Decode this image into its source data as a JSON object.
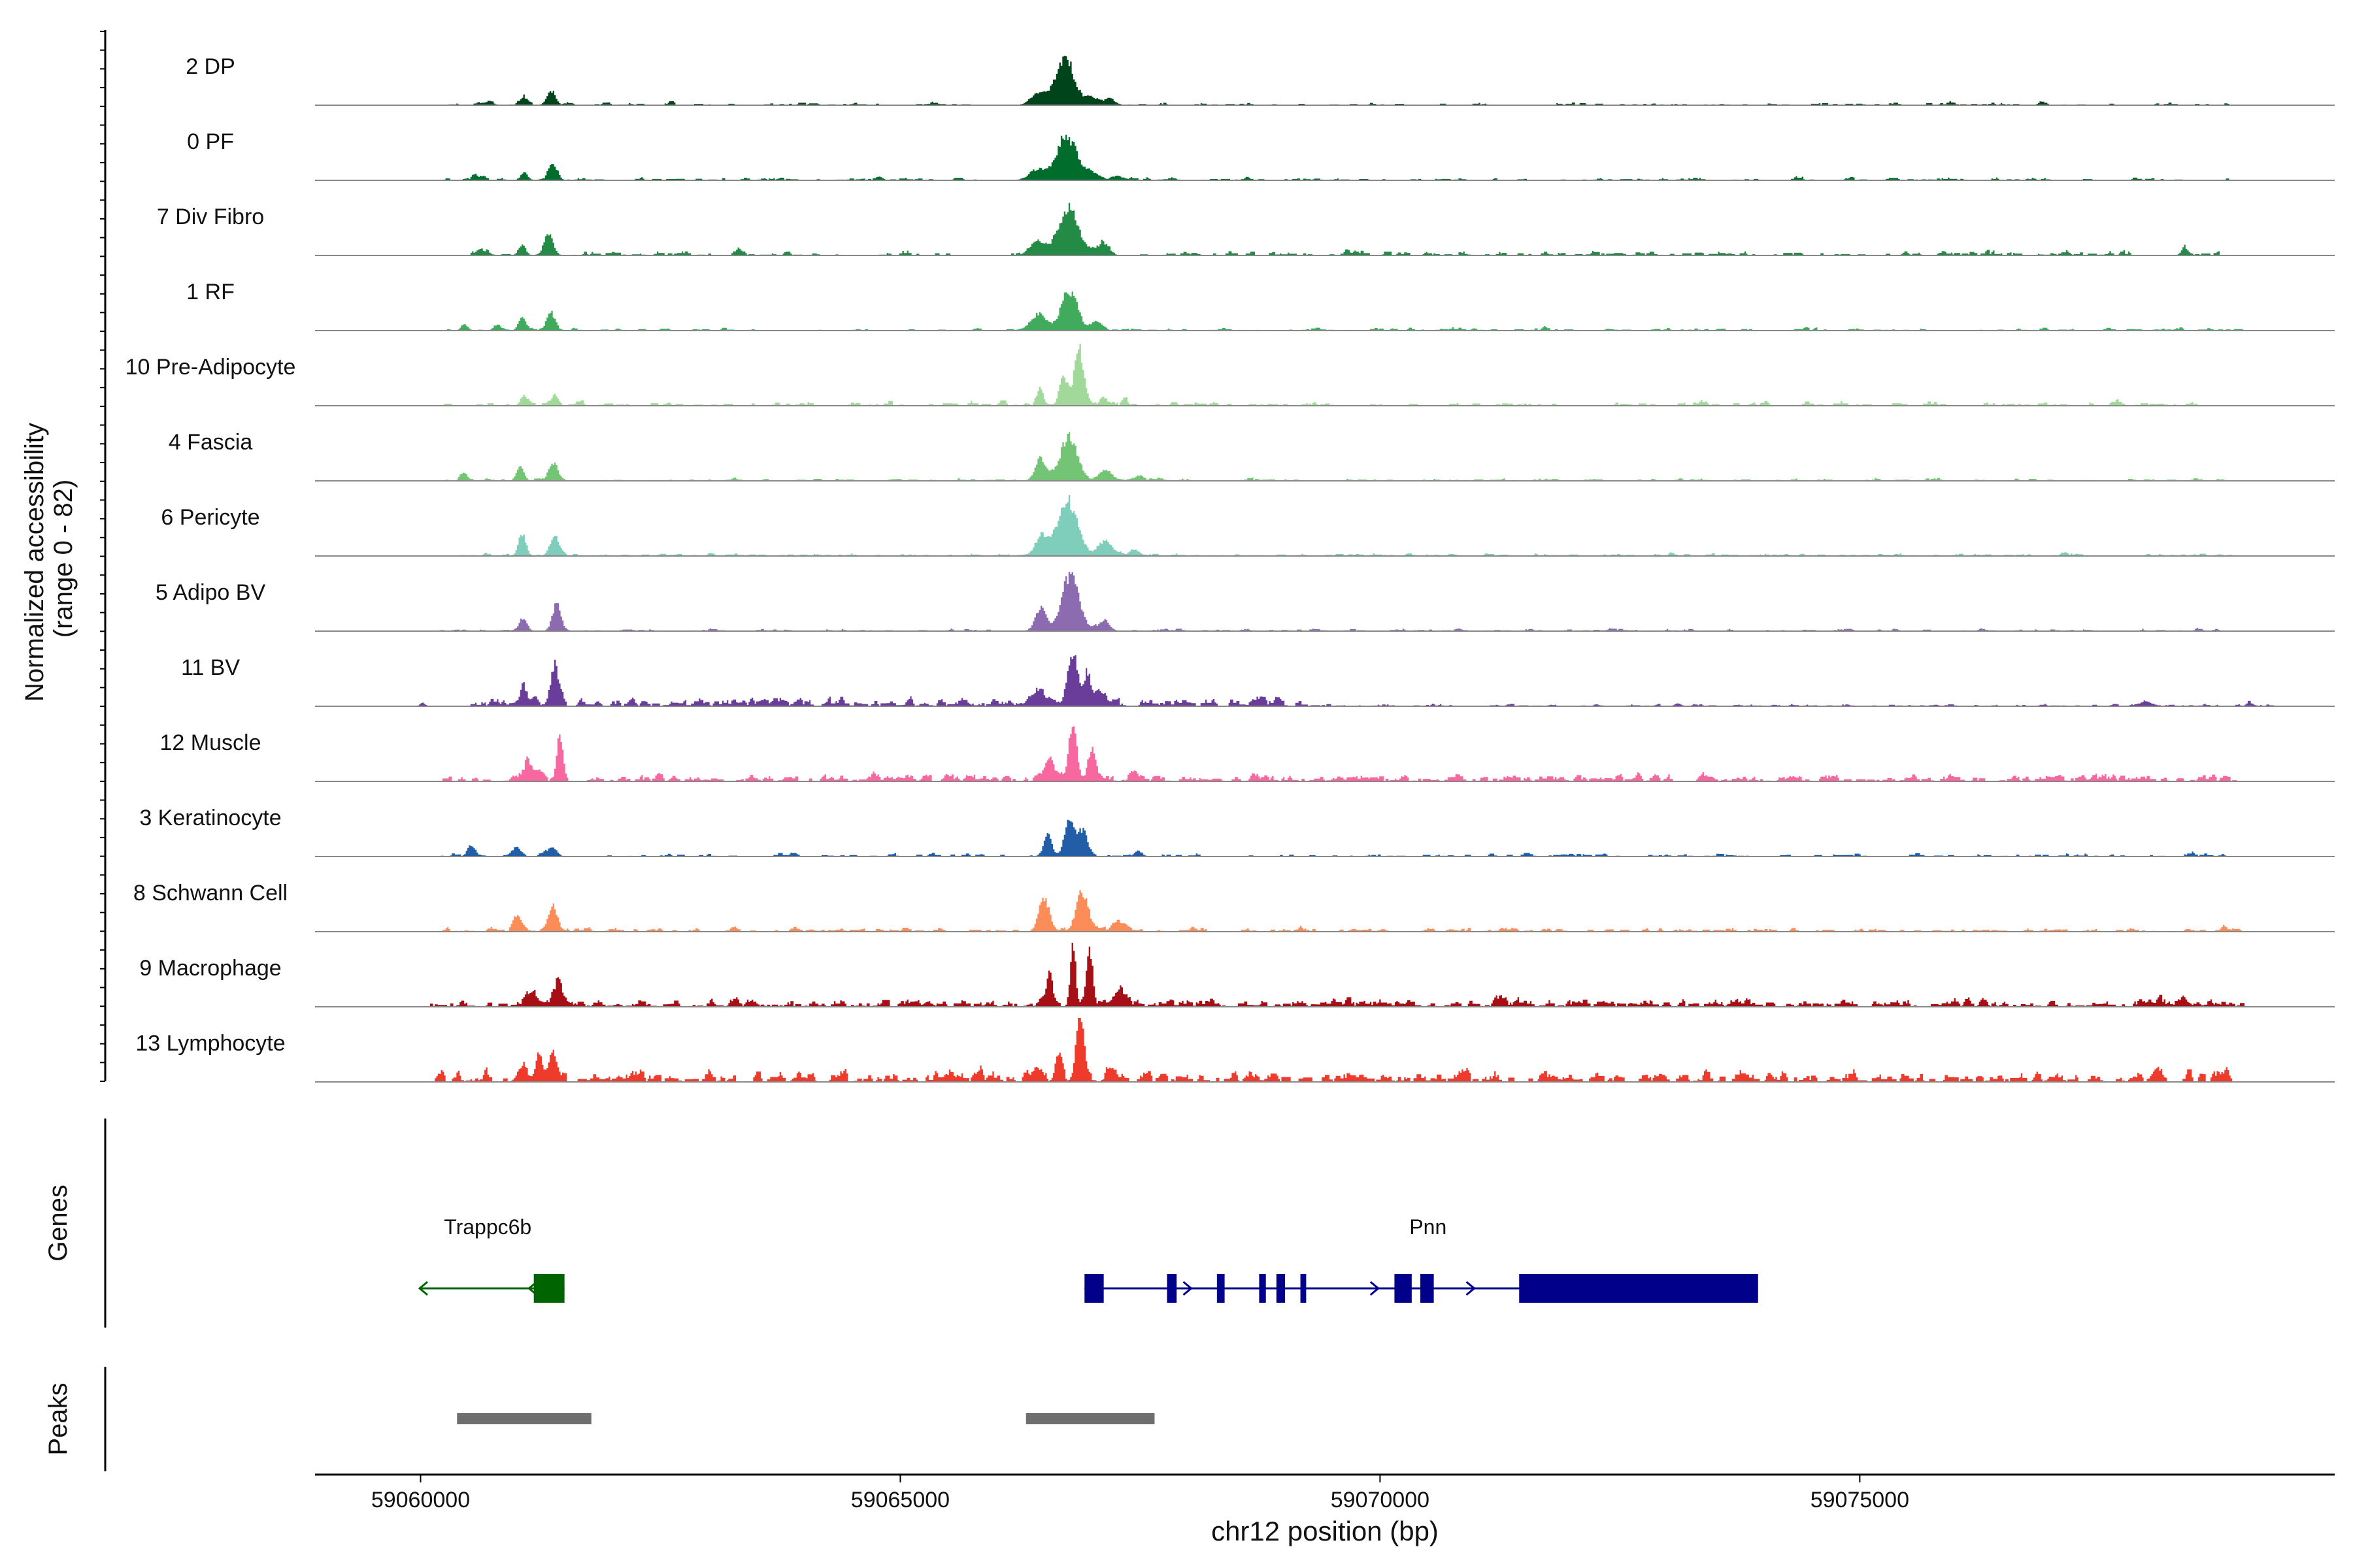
{
  "chart_data": {
    "type": "area",
    "title": "",
    "ylabel_line1": "Normalized accessibility",
    "ylabel_line2": "(range 0 - 82)",
    "xlabel": "chr12 position (bp)",
    "xlim": [
      59058900,
      59079950
    ],
    "ylim": [
      0,
      82
    ],
    "xticks": [
      59060000,
      59065000,
      59070000,
      59075000
    ],
    "xtick_labels": [
      "59060000",
      "59065000",
      "59070000",
      "59075000"
    ],
    "tracks": [
      {
        "name": "2 DP",
        "color": "#00441b",
        "peaks": [
          [
            59061080,
            8,
            32
          ],
          [
            59061360,
            18,
            46
          ],
          [
            59060700,
            4,
            60
          ],
          [
            59066720,
            58,
            100
          ],
          [
            59066440,
            16,
            80
          ],
          [
            59067000,
            10,
            60
          ],
          [
            59067180,
            7,
            60
          ]
        ],
        "noise": [
          [
            59060200,
            59078900,
            1.5,
            6,
            3
          ]
        ]
      },
      {
        "name": "0 PF",
        "color": "#006d2c",
        "peaks": [
          [
            59061080,
            10,
            38
          ],
          [
            59061380,
            20,
            46
          ],
          [
            59060600,
            5,
            65
          ],
          [
            59066740,
            58,
            100
          ],
          [
            59066440,
            14,
            80
          ],
          [
            59067000,
            10,
            65
          ],
          [
            59067250,
            6,
            55
          ]
        ],
        "noise": [
          [
            59060200,
            59078900,
            1.5,
            6,
            5
          ]
        ]
      },
      {
        "name": "7 Div Fibro",
        "color": "#238b45",
        "peaks": [
          [
            59061060,
            14,
            38
          ],
          [
            59061340,
            26,
            46
          ],
          [
            59060650,
            7,
            60
          ],
          [
            59066750,
            62,
            105
          ],
          [
            59066430,
            18,
            80
          ],
          [
            59067100,
            14,
            70
          ],
          [
            59078380,
            8,
            35
          ]
        ],
        "noise": [
          [
            59060200,
            59078900,
            2.5,
            6,
            9
          ]
        ]
      },
      {
        "name": "1 RF",
        "color": "#41ab5d",
        "peaks": [
          [
            59060460,
            7,
            38
          ],
          [
            59060800,
            8,
            38
          ],
          [
            59061060,
            16,
            40
          ],
          [
            59061360,
            22,
            46
          ],
          [
            59066760,
            52,
            85
          ],
          [
            59066440,
            22,
            80
          ],
          [
            59067050,
            12,
            60
          ]
        ],
        "noise": [
          [
            59060200,
            59078900,
            1.5,
            6,
            11
          ]
        ]
      },
      {
        "name": "10 Pre-Adipocyte",
        "color": "#a1d99b",
        "peaks": [
          [
            59061080,
            12,
            38
          ],
          [
            59061400,
            14,
            38
          ],
          [
            59066460,
            24,
            30
          ],
          [
            59066700,
            40,
            38
          ],
          [
            59066860,
            78,
            48
          ],
          [
            59067120,
            12,
            40
          ]
        ],
        "noise": [
          [
            59060200,
            59078900,
            2.5,
            6,
            13
          ]
        ]
      },
      {
        "name": "4 Fascia",
        "color": "#74c476",
        "peaks": [
          [
            59060450,
            8,
            38
          ],
          [
            59061040,
            18,
            40
          ],
          [
            59061380,
            24,
            46
          ],
          [
            59066760,
            58,
            90
          ],
          [
            59066470,
            28,
            60
          ],
          [
            59067150,
            14,
            60
          ],
          [
            59067480,
            6,
            40
          ]
        ],
        "noise": [
          [
            59060200,
            59078900,
            1.5,
            6,
            17
          ]
        ]
      },
      {
        "name": "6 Pericyte",
        "color": "#7fcdbb",
        "peaks": [
          [
            59061060,
            28,
            40
          ],
          [
            59061400,
            24,
            50
          ],
          [
            59066740,
            72,
            105
          ],
          [
            59066470,
            26,
            60
          ],
          [
            59067130,
            20,
            70
          ],
          [
            59067450,
            8,
            50
          ]
        ],
        "noise": [
          [
            59060200,
            59078900,
            1.5,
            6,
            19
          ]
        ]
      },
      {
        "name": "5 Adipo BV",
        "color": "#8c6bb1",
        "peaks": [
          [
            59061070,
            18,
            40
          ],
          [
            59061420,
            34,
            46
          ],
          [
            59066780,
            78,
            85
          ],
          [
            59066470,
            30,
            60
          ],
          [
            59067120,
            14,
            60
          ]
        ],
        "noise": [
          [
            59060200,
            59078900,
            1.2,
            6,
            23
          ]
        ]
      },
      {
        "name": "11 BV",
        "color": "#6a3d9a",
        "peaks": [
          [
            59061080,
            24,
            38
          ],
          [
            59061400,
            44,
            46
          ],
          [
            59066800,
            56,
            60
          ],
          [
            59066420,
            18,
            80
          ],
          [
            59067050,
            16,
            60
          ],
          [
            59066950,
            38,
            30
          ],
          [
            59060020,
            5,
            25
          ],
          [
            59065100,
            5,
            25
          ],
          [
            59077980,
            6,
            70
          ],
          [
            59079060,
            6,
            30
          ]
        ],
        "noise": [
          [
            59060500,
            59069500,
            3.5,
            2.5,
            29
          ],
          [
            59069500,
            59079400,
            1,
            4,
            31
          ]
        ]
      },
      {
        "name": "12 Muscle",
        "color": "#f768a1",
        "peaks": [
          [
            59061120,
            26,
            40
          ],
          [
            59061450,
            60,
            30
          ],
          [
            59061240,
            16,
            40
          ],
          [
            59066800,
            84,
            40
          ],
          [
            59066560,
            26,
            50
          ],
          [
            59067000,
            38,
            40
          ],
          [
            59067430,
            12,
            40
          ],
          [
            59074300,
            7,
            60
          ],
          [
            59065480,
            6,
            35
          ]
        ],
        "noise": [
          [
            59060200,
            59078900,
            3,
            3,
            37
          ]
        ]
      },
      {
        "name": "3 Keratinocyte",
        "color": "#225ea8",
        "peaks": [
          [
            59060530,
            16,
            40
          ],
          [
            59061000,
            14,
            40
          ],
          [
            59061370,
            14,
            46
          ],
          [
            59066760,
            46,
            50
          ],
          [
            59066540,
            28,
            42
          ],
          [
            59066900,
            34,
            50
          ],
          [
            59067480,
            8,
            40
          ]
        ],
        "noise": [
          [
            59060200,
            59078900,
            2,
            6,
            41
          ]
        ]
      },
      {
        "name": "8 Schwann Cell",
        "color": "#fc8d59",
        "peaks": [
          [
            59061010,
            24,
            40
          ],
          [
            59061380,
            32,
            46
          ],
          [
            59066500,
            46,
            55
          ],
          [
            59066900,
            50,
            62
          ],
          [
            59067280,
            14,
            70
          ]
        ],
        "noise": [
          [
            59060200,
            59078900,
            2,
            4,
            43
          ]
        ]
      },
      {
        "name": "9 Macrophage",
        "color": "#a50f15",
        "peaks": [
          [
            59061140,
            14,
            50
          ],
          [
            59061440,
            30,
            46
          ],
          [
            59066560,
            44,
            30
          ],
          [
            59066800,
            80,
            28
          ],
          [
            59066970,
            70,
            30
          ],
          [
            59067280,
            20,
            60
          ],
          [
            59065300,
            6,
            40
          ],
          [
            59078360,
            10,
            40
          ]
        ],
        "noise": [
          [
            59060100,
            59079000,
            3.5,
            3,
            47
          ]
        ]
      },
      {
        "name": "13 Lymphocyte",
        "color": "#ef3b2c",
        "peaks": [
          [
            59061060,
            20,
            50
          ],
          [
            59061380,
            36,
            40
          ],
          [
            59061230,
            26,
            40
          ],
          [
            59066650,
            26,
            40
          ],
          [
            59066870,
            82,
            40
          ],
          [
            59066420,
            14,
            40
          ],
          [
            59067200,
            16,
            50
          ],
          [
            59065550,
            8,
            40
          ],
          [
            59068650,
            10,
            40
          ],
          [
            59078100,
            12,
            40
          ]
        ],
        "noise": [
          [
            59060100,
            59079000,
            5,
            3,
            53
          ]
        ]
      }
    ],
    "gene_track_label": "Genes",
    "genes": [
      {
        "name": "Trappc6b",
        "strand": "-",
        "start": 59059990,
        "end": 59061500,
        "label_x": 59060700,
        "color": "#006400",
        "exons": [
          [
            59061180,
            59061500
          ]
        ]
      },
      {
        "name": "Pnn",
        "strand": "+",
        "start": 59066920,
        "end": 59073940,
        "label_x": 59070500,
        "color": "#00008b",
        "exons": [
          [
            59066920,
            59067120
          ],
          [
            59067780,
            59067880
          ],
          [
            59068300,
            59068380
          ],
          [
            59068740,
            59068810
          ],
          [
            59068920,
            59069010
          ],
          [
            59069170,
            59069230
          ],
          [
            59070150,
            59070330
          ],
          [
            59070420,
            59070560
          ],
          [
            59071450,
            59073940
          ]
        ]
      }
    ],
    "peak_track_label": "Peaks",
    "peak_regions": [
      [
        59060380,
        59061780
      ],
      [
        59066310,
        59067650
      ]
    ]
  }
}
